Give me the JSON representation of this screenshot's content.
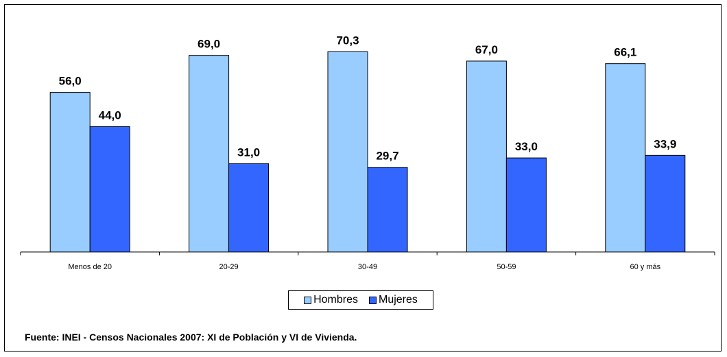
{
  "chart_data": {
    "type": "bar",
    "categories": [
      "Menos de 20",
      "20-29",
      "30-49",
      "50-59",
      "60 y más"
    ],
    "series": [
      {
        "name": "Hombres",
        "values": [
          56.0,
          69.0,
          70.3,
          67.0,
          66.1
        ],
        "labels": [
          "56,0",
          "69,0",
          "70,3",
          "67,0",
          "66,1"
        ],
        "color": "#99ccff"
      },
      {
        "name": "Mujeres",
        "values": [
          44.0,
          31.0,
          29.7,
          33.0,
          33.9
        ],
        "labels": [
          "44,0",
          "31,0",
          "29,7",
          "33,0",
          "33,9"
        ],
        "color": "#3366ff"
      }
    ],
    "ylim": [
      0,
      100
    ],
    "grid": false,
    "legend_position": "bottom"
  },
  "source_note": "Fuente: INEI - Censos Nacionales 2007: XI de Población y VI de Vivienda."
}
